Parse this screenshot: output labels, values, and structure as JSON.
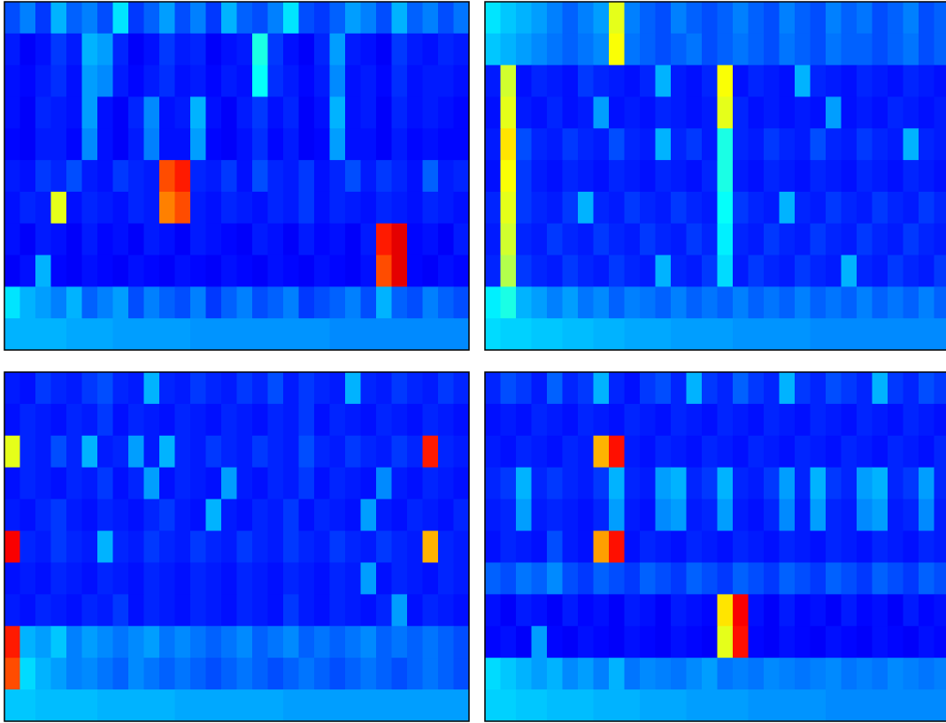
{
  "chart_data": [
    {
      "type": "heatmap",
      "colormap": "jet",
      "vlim": [
        0,
        100
      ],
      "values": [
        [
          20,
          25,
          18,
          30,
          22,
          25,
          20,
          35,
          18,
          22,
          28,
          20,
          25,
          18,
          30,
          22,
          20,
          25,
          35,
          20,
          18,
          22,
          28,
          25,
          20,
          30,
          22,
          25,
          20,
          24
        ],
        [
          15,
          12,
          14,
          18,
          15,
          30,
          28,
          16,
          12,
          14,
          18,
          15,
          16,
          12,
          14,
          15,
          40,
          18,
          14,
          12,
          16,
          28,
          15,
          14,
          12,
          18,
          15,
          14,
          16,
          15
        ],
        [
          14,
          13,
          15,
          17,
          14,
          28,
          26,
          15,
          13,
          15,
          17,
          14,
          15,
          13,
          15,
          14,
          38,
          17,
          15,
          13,
          15,
          26,
          14,
          15,
          13,
          17,
          14,
          15,
          15,
          14
        ],
        [
          14,
          12,
          16,
          15,
          14,
          28,
          14,
          12,
          16,
          26,
          14,
          15,
          30,
          14,
          12,
          15,
          18,
          14,
          16,
          12,
          14,
          30,
          14,
          15,
          12,
          16,
          14,
          15,
          14,
          13
        ],
        [
          13,
          12,
          15,
          15,
          13,
          26,
          14,
          12,
          15,
          25,
          14,
          14,
          28,
          13,
          12,
          14,
          17,
          13,
          15,
          12,
          13,
          28,
          14,
          14,
          12,
          15,
          13,
          14,
          13,
          13
        ],
        [
          15,
          14,
          18,
          16,
          20,
          15,
          14,
          18,
          16,
          15,
          80,
          85,
          16,
          15,
          18,
          14,
          20,
          16,
          15,
          18,
          14,
          16,
          20,
          15,
          18,
          16,
          14,
          22,
          15,
          16
        ],
        [
          14,
          16,
          15,
          60,
          14,
          16,
          15,
          14,
          16,
          15,
          75,
          80,
          15,
          14,
          16,
          15,
          14,
          16,
          15,
          18,
          14,
          16,
          15,
          14,
          16,
          15,
          14,
          16,
          15,
          14
        ],
        [
          14,
          12,
          15,
          14,
          12,
          15,
          13,
          14,
          12,
          15,
          14,
          12,
          15,
          14,
          13,
          12,
          15,
          14,
          12,
          15,
          13,
          14,
          12,
          15,
          85,
          90,
          13,
          14,
          12,
          15
        ],
        [
          12,
          14,
          30,
          13,
          12,
          14,
          13,
          12,
          14,
          13,
          12,
          14,
          13,
          12,
          14,
          13,
          12,
          14,
          13,
          12,
          14,
          13,
          12,
          14,
          80,
          90,
          13,
          12,
          14,
          13
        ],
        [
          35,
          30,
          28,
          25,
          30,
          22,
          25,
          28,
          20,
          25,
          22,
          20,
          25,
          18,
          22,
          25,
          20,
          22,
          25,
          18,
          20,
          22,
          25,
          20,
          30,
          22,
          20,
          25,
          22,
          20
        ],
        [
          30,
          30,
          30,
          30,
          29,
          29,
          29,
          28,
          28,
          28,
          28,
          28,
          27,
          27,
          27,
          27,
          27,
          27,
          27,
          27,
          27,
          26,
          26,
          26,
          26,
          26,
          26,
          26,
          26,
          26
        ]
      ]
    },
    {
      "type": "heatmap",
      "colormap": "jet",
      "vlim": [
        0,
        100
      ],
      "values": [
        [
          35,
          32,
          30,
          28,
          25,
          22,
          25,
          28,
          60,
          25,
          22,
          20,
          25,
          22,
          20,
          22,
          25,
          22,
          20,
          25,
          22,
          20,
          25,
          22,
          24,
          20,
          22,
          25,
          20,
          22
        ],
        [
          32,
          30,
          28,
          26,
          24,
          22,
          24,
          26,
          62,
          24,
          22,
          20,
          22,
          24,
          20,
          22,
          24,
          22,
          20,
          24,
          22,
          20,
          24,
          22,
          22,
          20,
          22,
          24,
          20,
          22
        ],
        [
          15,
          58,
          14,
          16,
          15,
          14,
          18,
          16,
          15,
          14,
          16,
          30,
          15,
          14,
          16,
          62,
          14,
          16,
          15,
          14,
          30,
          16,
          15,
          14,
          16,
          15,
          14,
          16,
          15,
          14
        ],
        [
          14,
          60,
          15,
          14,
          16,
          14,
          15,
          28,
          14,
          15,
          14,
          16,
          15,
          14,
          15,
          60,
          16,
          14,
          15,
          14,
          15,
          14,
          28,
          14,
          15,
          14,
          16,
          15,
          14,
          15
        ],
        [
          15,
          65,
          20,
          16,
          15,
          18,
          16,
          15,
          20,
          16,
          15,
          30,
          16,
          18,
          15,
          40,
          16,
          15,
          18,
          16,
          15,
          20,
          16,
          15,
          18,
          16,
          15,
          30,
          16,
          15
        ],
        [
          14,
          62,
          18,
          15,
          14,
          16,
          15,
          14,
          16,
          15,
          14,
          16,
          15,
          14,
          16,
          40,
          15,
          14,
          16,
          15,
          14,
          16,
          15,
          14,
          16,
          15,
          14,
          16,
          15,
          14
        ],
        [
          16,
          60,
          18,
          16,
          15,
          18,
          30,
          16,
          15,
          18,
          16,
          15,
          18,
          16,
          15,
          38,
          18,
          16,
          15,
          30,
          16,
          15,
          18,
          16,
          15,
          18,
          16,
          15,
          18,
          16
        ],
        [
          15,
          58,
          16,
          15,
          18,
          16,
          15,
          18,
          16,
          15,
          18,
          16,
          15,
          18,
          16,
          36,
          16,
          15,
          18,
          16,
          15,
          18,
          16,
          15,
          18,
          16,
          15,
          18,
          16,
          15
        ],
        [
          16,
          55,
          18,
          16,
          15,
          18,
          16,
          15,
          18,
          16,
          15,
          30,
          16,
          15,
          18,
          34,
          15,
          18,
          16,
          15,
          18,
          16,
          15,
          30,
          16,
          15,
          18,
          16,
          15,
          18
        ],
        [
          36,
          40,
          30,
          28,
          25,
          28,
          24,
          26,
          22,
          25,
          24,
          22,
          25,
          22,
          24,
          22,
          25,
          22,
          24,
          22,
          25,
          22,
          24,
          22,
          25,
          22,
          24,
          22,
          25,
          22
        ],
        [
          34,
          33,
          33,
          32,
          32,
          31,
          31,
          30,
          30,
          29,
          29,
          29,
          28,
          28,
          28,
          28,
          27,
          27,
          27,
          27,
          27,
          26,
          26,
          26,
          26,
          26,
          26,
          26,
          26,
          26
        ]
      ]
    },
    {
      "type": "heatmap",
      "colormap": "jet",
      "vlim": [
        0,
        100
      ],
      "values": [
        [
          15,
          14,
          18,
          16,
          15,
          18,
          20,
          16,
          15,
          30,
          16,
          15,
          18,
          16,
          15,
          18,
          16,
          20,
          15,
          18,
          16,
          15,
          30,
          16,
          15,
          18,
          16,
          15,
          18,
          16
        ],
        [
          14,
          16,
          15,
          14,
          16,
          15,
          18,
          14,
          16,
          15,
          14,
          16,
          15,
          14,
          16,
          15,
          14,
          16,
          15,
          18,
          14,
          16,
          15,
          14,
          16,
          15,
          14,
          16,
          15,
          14
        ],
        [
          60,
          16,
          15,
          20,
          16,
          30,
          15,
          16,
          28,
          15,
          30,
          16,
          15,
          18,
          16,
          15,
          18,
          16,
          15,
          20,
          16,
          15,
          18,
          16,
          15,
          18,
          16,
          85,
          16,
          15
        ],
        [
          14,
          16,
          15,
          14,
          16,
          15,
          18,
          14,
          16,
          28,
          14,
          16,
          15,
          14,
          28,
          15,
          14,
          16,
          15,
          18,
          14,
          16,
          15,
          14,
          26,
          15,
          14,
          16,
          15,
          14
        ],
        [
          15,
          14,
          16,
          18,
          15,
          14,
          16,
          15,
          14,
          16,
          18,
          15,
          14,
          30,
          15,
          14,
          16,
          15,
          18,
          14,
          16,
          15,
          14,
          28,
          15,
          14,
          16,
          15,
          14,
          16
        ],
        [
          88,
          16,
          15,
          18,
          16,
          15,
          30,
          16,
          15,
          18,
          16,
          15,
          18,
          16,
          15,
          18,
          16,
          15,
          18,
          16,
          15,
          18,
          16,
          15,
          18,
          16,
          15,
          70,
          16,
          15
        ],
        [
          14,
          15,
          14,
          16,
          15,
          14,
          16,
          15,
          14,
          16,
          15,
          14,
          16,
          15,
          14,
          16,
          15,
          14,
          16,
          15,
          14,
          16,
          15,
          28,
          14,
          16,
          15,
          14,
          16,
          15
        ],
        [
          15,
          14,
          16,
          15,
          14,
          16,
          15,
          18,
          14,
          16,
          15,
          14,
          16,
          15,
          14,
          16,
          15,
          14,
          18,
          15,
          14,
          16,
          15,
          14,
          16,
          28,
          14,
          16,
          15,
          14
        ],
        [
          85,
          30,
          28,
          32,
          25,
          28,
          26,
          24,
          26,
          28,
          24,
          26,
          24,
          22,
          24,
          26,
          22,
          24,
          26,
          22,
          24,
          22,
          24,
          26,
          22,
          24,
          22,
          24,
          22,
          20
        ],
        [
          80,
          34,
          30,
          28,
          25,
          26,
          24,
          22,
          26,
          24,
          22,
          24,
          22,
          20,
          22,
          24,
          22,
          20,
          22,
          24,
          22,
          20,
          22,
          24,
          22,
          20,
          22,
          24,
          22,
          20
        ],
        [
          32,
          32,
          31,
          31,
          31,
          31,
          30,
          30,
          30,
          30,
          30,
          29,
          29,
          29,
          29,
          29,
          29,
          29,
          28,
          28,
          28,
          28,
          28,
          28,
          28,
          28,
          28,
          28,
          28,
          28
        ]
      ]
    },
    {
      "type": "heatmap",
      "colormap": "jet",
      "vlim": [
        0,
        100
      ],
      "values": [
        [
          16,
          20,
          18,
          15,
          22,
          16,
          18,
          30,
          16,
          14,
          18,
          20,
          16,
          30,
          18,
          16,
          22,
          18,
          16,
          30,
          18,
          16,
          20,
          18,
          16,
          30,
          18,
          16,
          20,
          18
        ],
        [
          14,
          15,
          14,
          16,
          15,
          14,
          16,
          15,
          14,
          16,
          15,
          14,
          16,
          15,
          14,
          16,
          15,
          14,
          16,
          15,
          14,
          16,
          15,
          14,
          16,
          15,
          14,
          16,
          15,
          14
        ],
        [
          15,
          14,
          16,
          15,
          14,
          16,
          15,
          70,
          86,
          15,
          14,
          16,
          15,
          14,
          16,
          15,
          14,
          16,
          15,
          14,
          16,
          15,
          14,
          16,
          15,
          14,
          16,
          15,
          14,
          16
        ],
        [
          16,
          18,
          30,
          16,
          18,
          16,
          15,
          18,
          30,
          16,
          15,
          28,
          30,
          16,
          18,
          30,
          16,
          15,
          18,
          28,
          16,
          30,
          18,
          16,
          28,
          30,
          16,
          18,
          28,
          16
        ],
        [
          15,
          16,
          28,
          15,
          16,
          15,
          14,
          16,
          28,
          15,
          14,
          26,
          28,
          15,
          16,
          28,
          15,
          14,
          16,
          26,
          15,
          28,
          16,
          15,
          26,
          28,
          15,
          16,
          26,
          15
        ],
        [
          14,
          16,
          15,
          14,
          20,
          15,
          14,
          72,
          86,
          14,
          16,
          15,
          14,
          16,
          15,
          14,
          16,
          15,
          14,
          16,
          15,
          14,
          16,
          15,
          14,
          16,
          15,
          14,
          16,
          15
        ],
        [
          22,
          20,
          24,
          22,
          26,
          20,
          18,
          22,
          20,
          18,
          22,
          20,
          18,
          22,
          20,
          18,
          22,
          20,
          18,
          22,
          20,
          18,
          22,
          20,
          18,
          22,
          20,
          18,
          22,
          20
        ],
        [
          14,
          12,
          15,
          14,
          12,
          15,
          13,
          14,
          12,
          15,
          14,
          12,
          15,
          14,
          13,
          65,
          88,
          14,
          12,
          15,
          13,
          14,
          12,
          15,
          13,
          14,
          12,
          15,
          13,
          14
        ],
        [
          13,
          14,
          12,
          28,
          13,
          12,
          14,
          13,
          12,
          14,
          13,
          12,
          14,
          13,
          12,
          60,
          86,
          13,
          12,
          14,
          13,
          12,
          14,
          13,
          12,
          14,
          13,
          12,
          14,
          13
        ],
        [
          34,
          32,
          30,
          28,
          30,
          26,
          28,
          25,
          30,
          24,
          26,
          25,
          24,
          26,
          28,
          24,
          25,
          24,
          26,
          25,
          24,
          25,
          26,
          24,
          25,
          24,
          26,
          25,
          24,
          25
        ],
        [
          33,
          33,
          32,
          32,
          31,
          31,
          31,
          30,
          30,
          30,
          29,
          29,
          29,
          28,
          28,
          28,
          28,
          27,
          27,
          27,
          27,
          27,
          26,
          26,
          26,
          26,
          26,
          26,
          26,
          26
        ]
      ]
    }
  ]
}
